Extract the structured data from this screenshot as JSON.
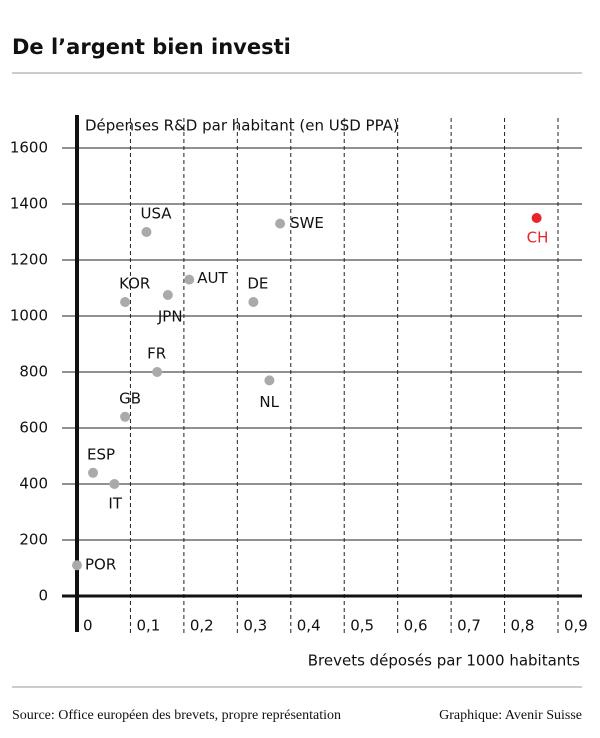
{
  "chart_data": {
    "type": "scatter",
    "title": "De l’argent bien investi",
    "y_label": "Dépenses R&D par habitant (en USD PPA)",
    "x_label": "Brevets déposés par 1000 habitants",
    "source": "Source: Office européen des brevets, propre représentation",
    "credit": "Graphique: Avenir Suisse",
    "xlim": [
      0,
      0.9
    ],
    "ylim": [
      0,
      1600
    ],
    "xticks": [
      0,
      {
        "value": 0.1,
        "label": "0,1"
      },
      {
        "value": 0.2,
        "label": "0,2"
      },
      {
        "value": 0.3,
        "label": "0,3"
      },
      {
        "value": 0.4,
        "label": "0,4"
      },
      {
        "value": 0.5,
        "label": "0,5"
      },
      {
        "value": 0.6,
        "label": "0,6"
      },
      {
        "value": 0.7,
        "label": "0,7"
      },
      {
        "value": 0.8,
        "label": "0,8"
      },
      {
        "value": 0.9,
        "label": "0,9"
      }
    ],
    "yticks": [
      0,
      200,
      400,
      600,
      800,
      1000,
      1200,
      1400,
      1600
    ],
    "grid": true,
    "points": [
      {
        "label": "POR",
        "x": 0.0,
        "y": 110,
        "color": "#aaaaaa"
      },
      {
        "label": "ESP",
        "x": 0.03,
        "y": 440,
        "color": "#aaaaaa"
      },
      {
        "label": "IT",
        "x": 0.07,
        "y": 400,
        "color": "#aaaaaa"
      },
      {
        "label": "GB",
        "x": 0.09,
        "y": 640,
        "color": "#aaaaaa"
      },
      {
        "label": "FR",
        "x": 0.15,
        "y": 800,
        "color": "#aaaaaa"
      },
      {
        "label": "KOR",
        "x": 0.09,
        "y": 1050,
        "color": "#aaaaaa"
      },
      {
        "label": "JPN",
        "x": 0.17,
        "y": 1075,
        "color": "#aaaaaa"
      },
      {
        "label": "USA",
        "x": 0.13,
        "y": 1300,
        "color": "#aaaaaa"
      },
      {
        "label": "AUT",
        "x": 0.21,
        "y": 1130,
        "color": "#aaaaaa"
      },
      {
        "label": "DE",
        "x": 0.33,
        "y": 1050,
        "color": "#aaaaaa"
      },
      {
        "label": "SWE",
        "x": 0.38,
        "y": 1330,
        "color": "#aaaaaa"
      },
      {
        "label": "NL",
        "x": 0.36,
        "y": 770,
        "color": "#aaaaaa"
      },
      {
        "label": "CH",
        "x": 0.86,
        "y": 1350,
        "color": "#e8232a"
      }
    ]
  }
}
